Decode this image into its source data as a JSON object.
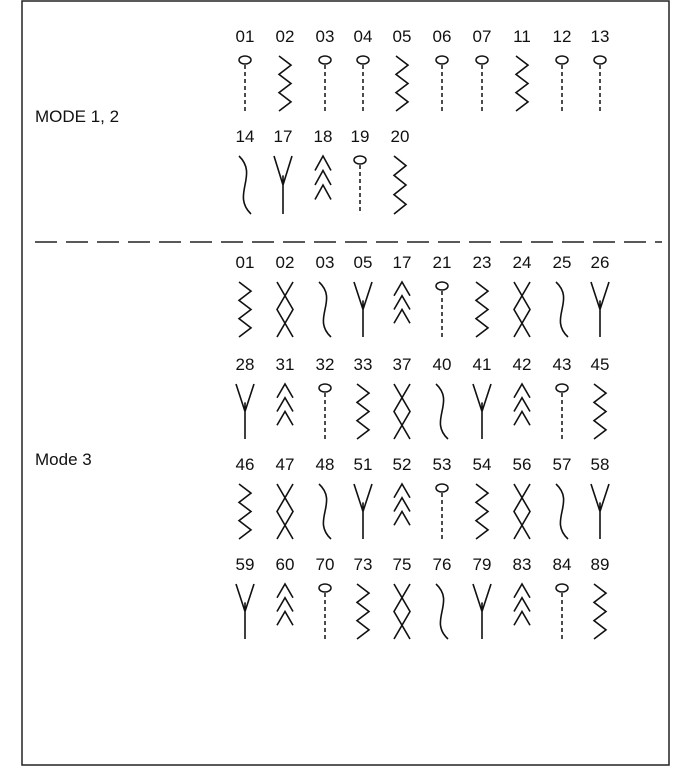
{
  "modes": [
    {
      "label": "MODE 1, 2",
      "rows": [
        [
          "01",
          "02",
          "03",
          "04",
          "05",
          "06",
          "07",
          "11",
          "12",
          "13"
        ],
        [
          "14",
          "17",
          "18",
          "19",
          "20"
        ]
      ]
    },
    {
      "label": "Mode 3",
      "rows": [
        [
          "01",
          "02",
          "03",
          "05",
          "17",
          "21",
          "23",
          "24",
          "25",
          "26"
        ],
        [
          "28",
          "31",
          "32",
          "33",
          "37",
          "40",
          "41",
          "42",
          "43",
          "45"
        ],
        [
          "46",
          "47",
          "48",
          "51",
          "52",
          "53",
          "54",
          "56",
          "57",
          "58"
        ],
        [
          "59",
          "60",
          "70",
          "73",
          "75",
          "76",
          "79",
          "83",
          "84",
          "89"
        ]
      ]
    }
  ]
}
